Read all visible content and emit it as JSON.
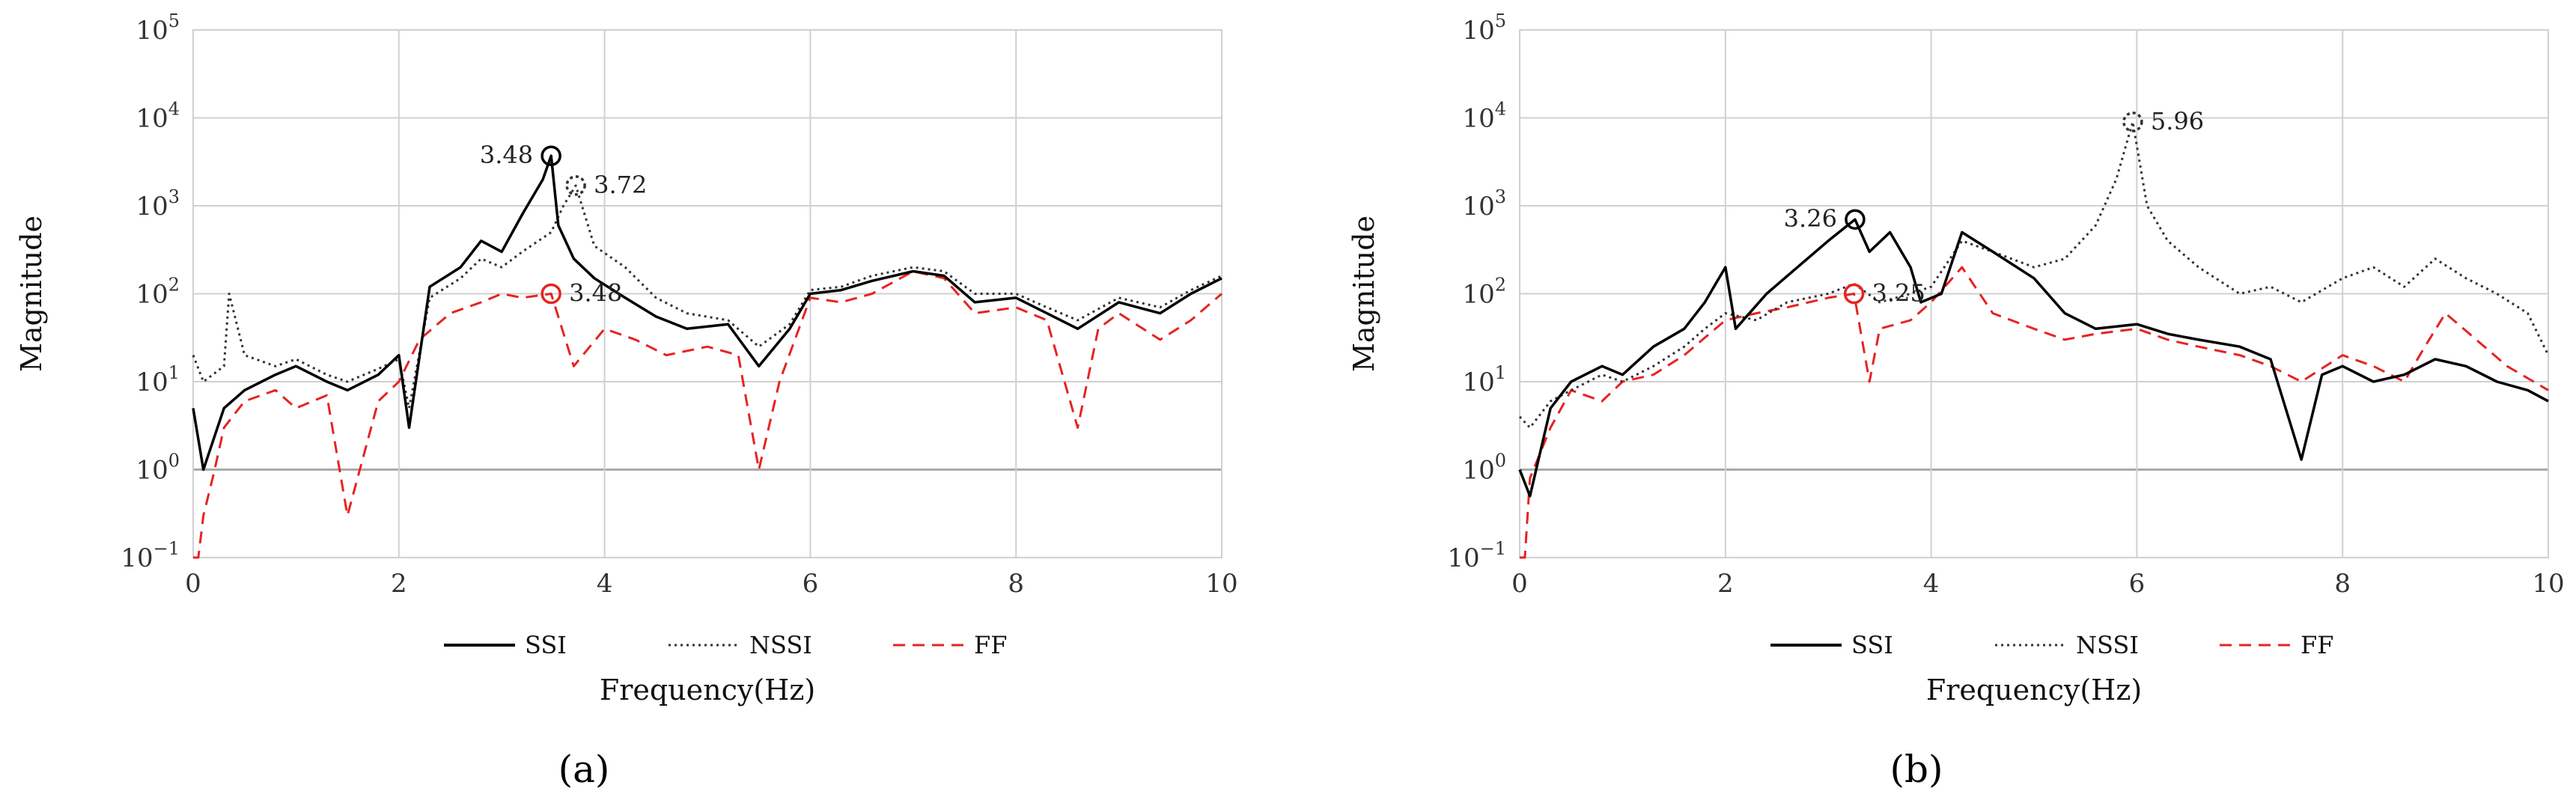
{
  "chart_data": [
    {
      "type": "line",
      "panel_label": "(a)",
      "xlabel": "Frequency(Hz)",
      "ylabel": "Magnitude",
      "xlim": [
        0,
        10
      ],
      "ylim": [
        0.1,
        100000
      ],
      "y_scale": "log",
      "xticks": [
        "0",
        "2",
        "4",
        "6",
        "8",
        "10"
      ],
      "yticks": [
        {
          "base": "10",
          "exp": "−1"
        },
        {
          "base": "10",
          "exp": "0"
        },
        {
          "base": "10",
          "exp": "1"
        },
        {
          "base": "10",
          "exp": "2"
        },
        {
          "base": "10",
          "exp": "3"
        },
        {
          "base": "10",
          "exp": "4"
        },
        {
          "base": "10",
          "exp": "5"
        }
      ],
      "grid": true,
      "legend_position": "bottom",
      "series": [
        {
          "name": "SSI",
          "color": "#000000",
          "dash": "solid",
          "x": [
            0,
            0.1,
            0.3,
            0.5,
            0.8,
            1.0,
            1.3,
            1.5,
            1.8,
            2.0,
            2.1,
            2.3,
            2.6,
            2.8,
            3.0,
            3.2,
            3.4,
            3.48,
            3.55,
            3.7,
            3.9,
            4.2,
            4.5,
            4.8,
            5.2,
            5.5,
            5.8,
            6.0,
            6.3,
            6.6,
            7.0,
            7.3,
            7.6,
            8.0,
            8.3,
            8.6,
            9.0,
            9.4,
            9.7,
            10.0
          ],
          "y": [
            5,
            1,
            5,
            8,
            12,
            15,
            10,
            8,
            12,
            20,
            3,
            120,
            200,
            400,
            300,
            800,
            2000,
            3700,
            600,
            250,
            150,
            90,
            55,
            40,
            45,
            15,
            40,
            100,
            110,
            140,
            180,
            160,
            80,
            90,
            60,
            40,
            80,
            60,
            100,
            150
          ]
        },
        {
          "name": "NSSI",
          "color": "#333333",
          "dash": "dotted",
          "x": [
            0,
            0.1,
            0.3,
            0.35,
            0.5,
            0.8,
            1.0,
            1.3,
            1.5,
            1.8,
            2.0,
            2.1,
            2.3,
            2.6,
            2.8,
            3.0,
            3.2,
            3.48,
            3.6,
            3.72,
            3.9,
            4.2,
            4.5,
            4.8,
            5.2,
            5.5,
            5.8,
            6.0,
            6.3,
            6.6,
            7.0,
            7.3,
            7.6,
            8.0,
            8.3,
            8.6,
            9.0,
            9.4,
            9.7,
            10.0
          ],
          "y": [
            20,
            10,
            15,
            100,
            20,
            15,
            18,
            12,
            10,
            14,
            18,
            5,
            90,
            150,
            250,
            200,
            300,
            500,
            1000,
            1700,
            350,
            200,
            90,
            60,
            50,
            25,
            45,
            110,
            120,
            160,
            200,
            180,
            100,
            100,
            70,
            50,
            90,
            70,
            110,
            160
          ]
        },
        {
          "name": "FF",
          "color": "#e52421",
          "dash": "dashed",
          "x": [
            0,
            0.05,
            0.1,
            0.2,
            0.3,
            0.5,
            0.8,
            1.0,
            1.3,
            1.5,
            1.8,
            2.0,
            2.2,
            2.5,
            2.8,
            3.0,
            3.2,
            3.48,
            3.7,
            4.0,
            4.3,
            4.6,
            5.0,
            5.3,
            5.5,
            5.7,
            6.0,
            6.3,
            6.6,
            7.0,
            7.3,
            7.6,
            8.0,
            8.3,
            8.6,
            8.8,
            9.0,
            9.4,
            9.7,
            10.0
          ],
          "y": [
            0.1,
            0.08,
            0.3,
            0.9,
            3,
            6,
            8,
            5,
            7,
            0.3,
            6,
            10,
            30,
            60,
            80,
            100,
            90,
            100,
            15,
            40,
            30,
            20,
            25,
            20,
            1,
            10,
            90,
            80,
            100,
            180,
            150,
            60,
            70,
            50,
            3,
            40,
            60,
            30,
            50,
            100
          ]
        }
      ],
      "annotations": [
        {
          "label": "3.48",
          "series": "SSI",
          "x": 3.48,
          "y": 3700
        },
        {
          "label": "3.72",
          "series": "NSSI",
          "x": 3.72,
          "y": 1700
        },
        {
          "label": "3.48",
          "series": "FF",
          "x": 3.48,
          "y": 100
        }
      ]
    },
    {
      "type": "line",
      "panel_label": "(b)",
      "xlabel": "Frequency(Hz)",
      "ylabel": "Magnitude",
      "xlim": [
        0,
        10
      ],
      "ylim": [
        0.1,
        100000
      ],
      "y_scale": "log",
      "xticks": [
        "0",
        "2",
        "4",
        "6",
        "8",
        "10"
      ],
      "yticks": [
        {
          "base": "10",
          "exp": "−1"
        },
        {
          "base": "10",
          "exp": "0"
        },
        {
          "base": "10",
          "exp": "1"
        },
        {
          "base": "10",
          "exp": "2"
        },
        {
          "base": "10",
          "exp": "3"
        },
        {
          "base": "10",
          "exp": "4"
        },
        {
          "base": "10",
          "exp": "5"
        }
      ],
      "grid": true,
      "legend_position": "bottom",
      "series": [
        {
          "name": "SSI",
          "color": "#000000",
          "dash": "solid",
          "x": [
            0,
            0.1,
            0.3,
            0.5,
            0.8,
            1.0,
            1.3,
            1.6,
            1.8,
            2.0,
            2.1,
            2.4,
            2.7,
            3.0,
            3.26,
            3.4,
            3.6,
            3.8,
            3.9,
            4.1,
            4.3,
            4.6,
            5.0,
            5.3,
            5.6,
            6.0,
            6.3,
            6.6,
            7.0,
            7.3,
            7.6,
            7.8,
            8.0,
            8.3,
            8.6,
            8.9,
            9.2,
            9.5,
            9.8,
            10.0
          ],
          "y": [
            1,
            0.5,
            5,
            10,
            15,
            12,
            25,
            40,
            80,
            200,
            40,
            100,
            200,
            400,
            700,
            300,
            500,
            200,
            80,
            100,
            500,
            300,
            150,
            60,
            40,
            45,
            35,
            30,
            25,
            18,
            1.3,
            12,
            15,
            10,
            12,
            18,
            15,
            10,
            8,
            6
          ]
        },
        {
          "name": "NSSI",
          "color": "#333333",
          "dash": "dotted",
          "x": [
            0,
            0.1,
            0.3,
            0.5,
            0.8,
            1.0,
            1.3,
            1.6,
            1.8,
            2.0,
            2.3,
            2.6,
            3.0,
            3.25,
            3.5,
            3.8,
            4.0,
            4.3,
            4.6,
            5.0,
            5.3,
            5.6,
            5.8,
            5.96,
            6.1,
            6.3,
            6.6,
            7.0,
            7.3,
            7.6,
            8.0,
            8.3,
            8.6,
            8.9,
            9.2,
            9.5,
            9.8,
            10.0
          ],
          "y": [
            4,
            3,
            6,
            8,
            12,
            10,
            15,
            25,
            40,
            60,
            50,
            80,
            100,
            130,
            80,
            100,
            120,
            400,
            300,
            200,
            250,
            600,
            2000,
            9000,
            1000,
            400,
            200,
            100,
            120,
            80,
            150,
            200,
            120,
            250,
            150,
            100,
            60,
            20
          ]
        },
        {
          "name": "FF",
          "color": "#e52421",
          "dash": "dashed",
          "x": [
            0,
            0.05,
            0.1,
            0.3,
            0.5,
            0.8,
            1.0,
            1.3,
            1.6,
            2.0,
            2.3,
            2.6,
            3.0,
            3.25,
            3.4,
            3.5,
            3.8,
            4.0,
            4.3,
            4.6,
            5.0,
            5.3,
            5.6,
            6.0,
            6.3,
            6.6,
            7.0,
            7.3,
            7.6,
            8.0,
            8.3,
            8.6,
            8.8,
            9.0,
            9.3,
            9.6,
            10.0
          ],
          "y": [
            0.08,
            0.1,
            0.8,
            3,
            8,
            6,
            10,
            12,
            20,
            50,
            60,
            70,
            90,
            100,
            10,
            40,
            50,
            80,
            200,
            60,
            40,
            30,
            35,
            40,
            30,
            25,
            20,
            15,
            10,
            20,
            15,
            10,
            25,
            60,
            30,
            15,
            8
          ]
        }
      ],
      "annotations": [
        {
          "label": "3.26",
          "series": "SSI",
          "x": 3.26,
          "y": 700
        },
        {
          "label": "5.96",
          "series": "NSSI",
          "x": 5.96,
          "y": 9000
        },
        {
          "label": "3.25",
          "series": "FF",
          "x": 3.25,
          "y": 100
        }
      ]
    }
  ]
}
